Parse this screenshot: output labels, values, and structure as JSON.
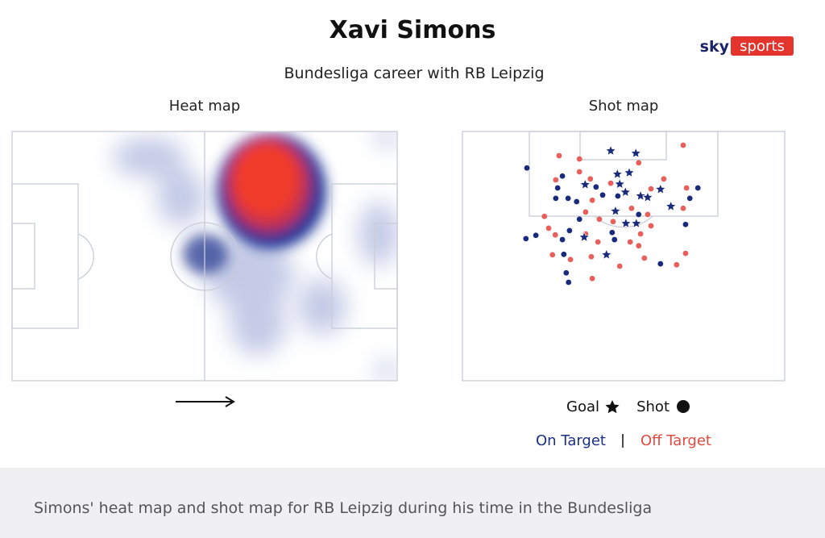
{
  "header": {
    "title": "Xavi Simons",
    "subtitle": "Bundesliga career with RB Leipzig",
    "logo": {
      "left": "sky",
      "right": "sports"
    }
  },
  "heat_map": {
    "title": "Heat map"
  },
  "shot_map": {
    "title": "Shot map",
    "legend": {
      "goal": "Goal",
      "shot": "Shot",
      "on_target": "On Target",
      "off_target": "Off Target"
    },
    "goals": [
      [
        31.3,
        4.1
      ],
      [
        36.6,
        4.6
      ],
      [
        25.9,
        11.2
      ],
      [
        32.7,
        9.0
      ],
      [
        35.2,
        8.7
      ],
      [
        33.2,
        11.1
      ],
      [
        34.4,
        12.8
      ],
      [
        37.6,
        13.6
      ],
      [
        39.1,
        13.9
      ],
      [
        41.8,
        12.2
      ],
      [
        44.0,
        15.8
      ],
      [
        32.3,
        16.8
      ],
      [
        34.5,
        19.4
      ],
      [
        36.7,
        19.4
      ],
      [
        30.4,
        26.0
      ],
      [
        25.7,
        22.3
      ]
    ],
    "on_target": [
      [
        13.6,
        7.7
      ],
      [
        21.1,
        9.4
      ],
      [
        20.1,
        11.9
      ],
      [
        19.7,
        14.1
      ],
      [
        22.3,
        14.1
      ],
      [
        24.1,
        14.8
      ],
      [
        28.2,
        11.7
      ],
      [
        29.6,
        13.4
      ],
      [
        32.8,
        13.6
      ],
      [
        49.7,
        11.9
      ],
      [
        48.0,
        14.1
      ],
      [
        13.4,
        22.6
      ],
      [
        15.5,
        21.9
      ],
      [
        21.1,
        22.8
      ],
      [
        22.6,
        20.9
      ],
      [
        24.7,
        18.5
      ],
      [
        31.6,
        21.3
      ],
      [
        32.1,
        22.8
      ],
      [
        37.2,
        17.5
      ],
      [
        21.4,
        25.9
      ],
      [
        21.9,
        29.8
      ],
      [
        22.4,
        31.8
      ],
      [
        41.8,
        27.9
      ],
      [
        47.1,
        19.6
      ]
    ],
    "off_target": [
      [
        20.4,
        5.1
      ],
      [
        24.7,
        5.8
      ],
      [
        46.6,
        2.9
      ],
      [
        24.7,
        8.5
      ],
      [
        37.2,
        6.6
      ],
      [
        42.5,
        10.0
      ],
      [
        19.7,
        10.2
      ],
      [
        27.0,
        10.0
      ],
      [
        39.8,
        12.1
      ],
      [
        47.3,
        11.9
      ],
      [
        27.4,
        14.5
      ],
      [
        31.3,
        10.9
      ],
      [
        28.9,
        18.5
      ],
      [
        31.8,
        19.0
      ],
      [
        39.8,
        19.9
      ],
      [
        26.0,
        17.0
      ],
      [
        18.2,
        20.4
      ],
      [
        19.6,
        21.8
      ],
      [
        26.0,
        21.6
      ],
      [
        28.6,
        23.3
      ],
      [
        35.4,
        23.3
      ],
      [
        37.6,
        21.6
      ],
      [
        19.0,
        26.0
      ],
      [
        22.8,
        27.0
      ],
      [
        27.2,
        26.4
      ],
      [
        27.4,
        31.0
      ],
      [
        33.2,
        28.4
      ],
      [
        37.2,
        24.1
      ],
      [
        38.4,
        26.7
      ],
      [
        47.1,
        25.7
      ],
      [
        45.2,
        28.1
      ],
      [
        46.6,
        16.2
      ],
      [
        35.7,
        16.2
      ],
      [
        39.1,
        17.5
      ],
      [
        17.3,
        17.9
      ]
    ]
  },
  "caption": "Simons' heat map and shot map for RB Leipzig during his time in the Bundesliga"
}
